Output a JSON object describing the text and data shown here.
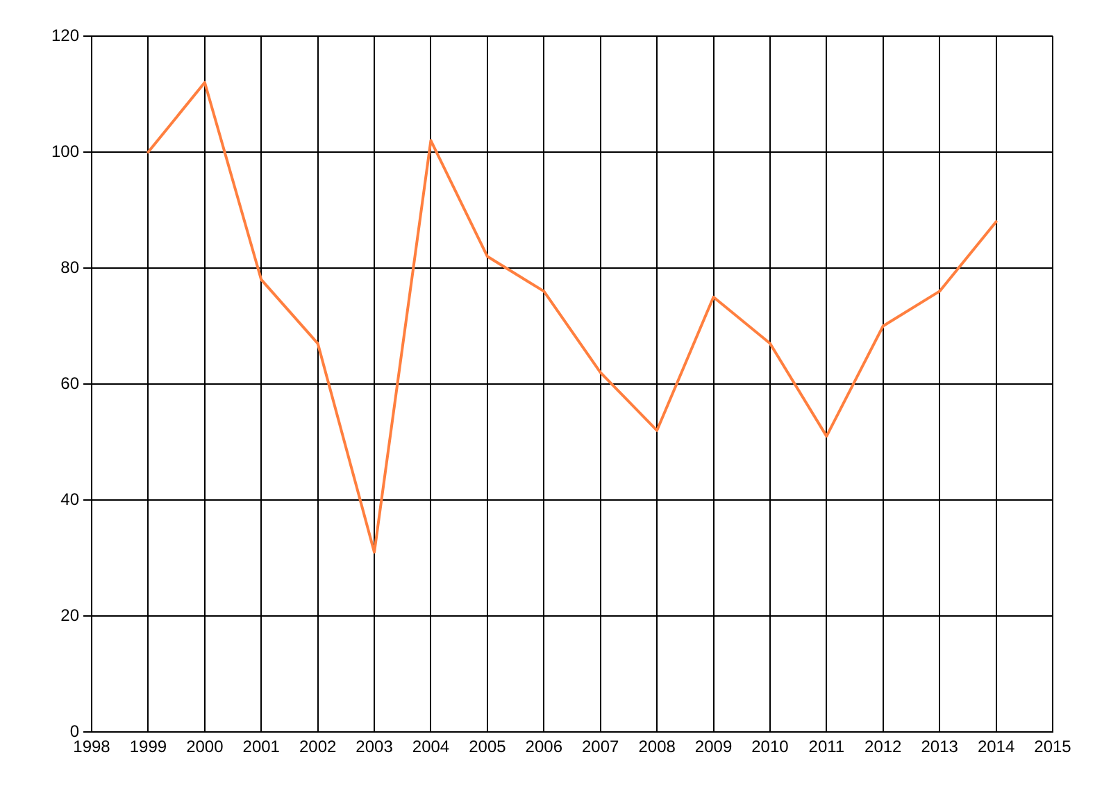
{
  "chart_data": {
    "type": "line",
    "x": [
      1999,
      2000,
      2001,
      2002,
      2003,
      2004,
      2005,
      2006,
      2007,
      2008,
      2009,
      2010,
      2011,
      2012,
      2013,
      2014
    ],
    "series": [
      {
        "color": "#ff7f3f",
        "values": [
          100,
          112,
          78,
          67,
          31,
          102,
          82,
          76,
          62,
          52,
          75,
          67,
          51,
          70,
          76,
          88
        ]
      }
    ],
    "xlim": [
      1998,
      2015
    ],
    "xticks": [
      1998,
      1999,
      2000,
      2001,
      2002,
      2003,
      2004,
      2005,
      2006,
      2007,
      2008,
      2009,
      2010,
      2011,
      2012,
      2013,
      2014,
      2015
    ],
    "ylim": [
      0,
      120
    ],
    "yticks": [
      0,
      20,
      40,
      60,
      80,
      100,
      120
    ],
    "grid": true
  }
}
